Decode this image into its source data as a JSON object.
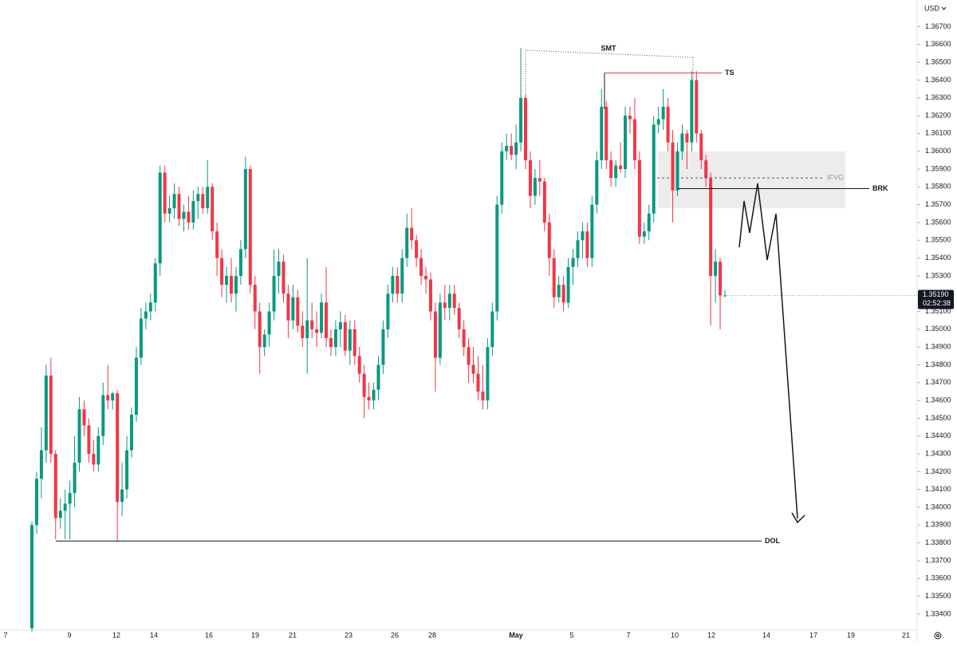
{
  "chart_data": {
    "type": "candlestick",
    "currency": "USD",
    "ylim": [
      1.3331,
      1.3685
    ],
    "yticks": [
      {
        "value": 1.334,
        "label": "1.33400"
      },
      {
        "value": 1.335,
        "label": "1.33500"
      },
      {
        "value": 1.336,
        "label": "1.33600"
      },
      {
        "value": 1.337,
        "label": "1.33700"
      },
      {
        "value": 1.338,
        "label": "1.33800"
      },
      {
        "value": 1.339,
        "label": "1.33900"
      },
      {
        "value": 1.34,
        "label": "1.34000"
      },
      {
        "value": 1.341,
        "label": "1.34100"
      },
      {
        "value": 1.342,
        "label": "1.34200"
      },
      {
        "value": 1.343,
        "label": "1.34300"
      },
      {
        "value": 1.344,
        "label": "1.34400"
      },
      {
        "value": 1.345,
        "label": "1.34500"
      },
      {
        "value": 1.346,
        "label": "1.34600"
      },
      {
        "value": 1.347,
        "label": "1.34700"
      },
      {
        "value": 1.348,
        "label": "1.34800"
      },
      {
        "value": 1.349,
        "label": "1.34900"
      },
      {
        "value": 1.35,
        "label": "1.35000"
      },
      {
        "value": 1.351,
        "label": "1.35100"
      },
      {
        "value": 1.353,
        "label": "1.35300"
      },
      {
        "value": 1.354,
        "label": "1.35400"
      },
      {
        "value": 1.355,
        "label": "1.35500"
      },
      {
        "value": 1.356,
        "label": "1.35600"
      },
      {
        "value": 1.357,
        "label": "1.35700"
      },
      {
        "value": 1.358,
        "label": "1.35800"
      },
      {
        "value": 1.359,
        "label": "1.35900"
      },
      {
        "value": 1.36,
        "label": "1.36000"
      },
      {
        "value": 1.361,
        "label": "1.36100"
      },
      {
        "value": 1.362,
        "label": "1.36200"
      },
      {
        "value": 1.363,
        "label": "1.36300"
      },
      {
        "value": 1.364,
        "label": "1.36400"
      },
      {
        "value": 1.365,
        "label": "1.36500"
      },
      {
        "value": 1.366,
        "label": "1.36600"
      },
      {
        "value": 1.367,
        "label": "1.36700"
      }
    ],
    "grid": false,
    "up_color": "#089981",
    "down_color": "#f23645",
    "x_labels": [
      "7",
      "9",
      "12",
      "14",
      "16",
      "19",
      "21",
      "23",
      "26",
      "28",
      "May",
      "5",
      "7",
      "10",
      "12",
      "14",
      "17",
      "19",
      "21"
    ],
    "last_price": {
      "value": 1.3519,
      "label": "1.35190"
    },
    "countdown": "02:52:38",
    "candles": [
      [
        1.3332,
        1.3392,
        1.333,
        1.339
      ],
      [
        1.339,
        1.342,
        1.3385,
        1.3416
      ],
      [
        1.3416,
        1.3445,
        1.3405,
        1.3432
      ],
      [
        1.3432,
        1.348,
        1.3425,
        1.3474
      ],
      [
        1.3474,
        1.3484,
        1.3425,
        1.343
      ],
      [
        1.343,
        1.3432,
        1.3382,
        1.3394
      ],
      [
        1.3394,
        1.3405,
        1.3388,
        1.3398
      ],
      [
        1.3398,
        1.341,
        1.3382,
        1.3402
      ],
      [
        1.3402,
        1.3415,
        1.3382,
        1.3408
      ],
      [
        1.3408,
        1.344,
        1.34,
        1.3425
      ],
      [
        1.3425,
        1.3462,
        1.342,
        1.3455
      ],
      [
        1.3455,
        1.346,
        1.344,
        1.3446
      ],
      [
        1.3446,
        1.345,
        1.3425,
        1.343
      ],
      [
        1.343,
        1.3438,
        1.342,
        1.3424
      ],
      [
        1.3424,
        1.3445,
        1.342,
        1.344
      ],
      [
        1.344,
        1.347,
        1.3435,
        1.3463
      ],
      [
        1.3463,
        1.348,
        1.3455,
        1.346
      ],
      [
        1.346,
        1.3465,
        1.3455,
        1.3464
      ],
      [
        1.3464,
        1.3466,
        1.3381,
        1.3403
      ],
      [
        1.3403,
        1.3425,
        1.3395,
        1.341
      ],
      [
        1.341,
        1.344,
        1.3405,
        1.3432
      ],
      [
        1.3432,
        1.3456,
        1.3428,
        1.3452
      ],
      [
        1.3452,
        1.349,
        1.3448,
        1.3484
      ],
      [
        1.3484,
        1.3512,
        1.348,
        1.3506
      ],
      [
        1.3506,
        1.3515,
        1.35,
        1.351
      ],
      [
        1.351,
        1.352,
        1.3505,
        1.3515
      ],
      [
        1.3515,
        1.354,
        1.351,
        1.3537
      ],
      [
        1.3537,
        1.3592,
        1.353,
        1.3588
      ],
      [
        1.3588,
        1.3592,
        1.356,
        1.3565
      ],
      [
        1.3565,
        1.3575,
        1.356,
        1.3568
      ],
      [
        1.3568,
        1.3582,
        1.3562,
        1.3576
      ],
      [
        1.3576,
        1.358,
        1.3558,
        1.3562
      ],
      [
        1.3562,
        1.357,
        1.3555,
        1.3566
      ],
      [
        1.3566,
        1.3575,
        1.3556,
        1.356
      ],
      [
        1.356,
        1.3578,
        1.3556,
        1.3572
      ],
      [
        1.3572,
        1.358,
        1.3562,
        1.3576
      ],
      [
        1.3576,
        1.358,
        1.3565,
        1.3568
      ],
      [
        1.3568,
        1.3595,
        1.3565,
        1.358
      ],
      [
        1.358,
        1.3582,
        1.355,
        1.3555
      ],
      [
        1.3555,
        1.356,
        1.353,
        1.354
      ],
      [
        1.354,
        1.3545,
        1.3518,
        1.3525
      ],
      [
        1.3525,
        1.3535,
        1.3515,
        1.353
      ],
      [
        1.353,
        1.354,
        1.3515,
        1.352
      ],
      [
        1.352,
        1.3535,
        1.351,
        1.353
      ],
      [
        1.353,
        1.355,
        1.3525,
        1.3545
      ],
      [
        1.3545,
        1.3597,
        1.354,
        1.359
      ],
      [
        1.359,
        1.3592,
        1.352,
        1.3525
      ],
      [
        1.3525,
        1.353,
        1.35,
        1.351
      ],
      [
        1.351,
        1.3515,
        1.3475,
        1.349
      ],
      [
        1.349,
        1.35,
        1.3485,
        1.3497
      ],
      [
        1.3497,
        1.3515,
        1.349,
        1.351
      ],
      [
        1.351,
        1.3545,
        1.3505,
        1.353
      ],
      [
        1.353,
        1.3545,
        1.352,
        1.3538
      ],
      [
        1.3538,
        1.3542,
        1.3515,
        1.352
      ],
      [
        1.352,
        1.3525,
        1.3495,
        1.3505
      ],
      [
        1.3505,
        1.3525,
        1.35,
        1.3518
      ],
      [
        1.3518,
        1.3522,
        1.3498,
        1.3502
      ],
      [
        1.3502,
        1.351,
        1.349,
        1.3495
      ],
      [
        1.3495,
        1.354,
        1.3475,
        1.3505
      ],
      [
        1.3505,
        1.3515,
        1.3495,
        1.35
      ],
      [
        1.35,
        1.351,
        1.349,
        1.3498
      ],
      [
        1.3498,
        1.352,
        1.3495,
        1.3515
      ],
      [
        1.3515,
        1.3535,
        1.349,
        1.3495
      ],
      [
        1.3495,
        1.35,
        1.3485,
        1.349
      ],
      [
        1.349,
        1.3505,
        1.3485,
        1.35
      ],
      [
        1.35,
        1.351,
        1.349,
        1.3504
      ],
      [
        1.3504,
        1.3508,
        1.3485,
        1.3488
      ],
      [
        1.3488,
        1.3505,
        1.348,
        1.35
      ],
      [
        1.35,
        1.3505,
        1.348,
        1.3485
      ],
      [
        1.3485,
        1.349,
        1.347,
        1.3475
      ],
      [
        1.3475,
        1.348,
        1.345,
        1.3462
      ],
      [
        1.3462,
        1.347,
        1.3455,
        1.346
      ],
      [
        1.346,
        1.347,
        1.3455,
        1.3466
      ],
      [
        1.3466,
        1.3485,
        1.346,
        1.348
      ],
      [
        1.348,
        1.3505,
        1.3475,
        1.35
      ],
      [
        1.35,
        1.3525,
        1.3495,
        1.352
      ],
      [
        1.352,
        1.3535,
        1.3515,
        1.353
      ],
      [
        1.353,
        1.3535,
        1.3515,
        1.352
      ],
      [
        1.352,
        1.3545,
        1.3515,
        1.354
      ],
      [
        1.354,
        1.3565,
        1.3535,
        1.3557
      ],
      [
        1.3557,
        1.3568,
        1.3545,
        1.355
      ],
      [
        1.355,
        1.3553,
        1.3535,
        1.354
      ],
      [
        1.354,
        1.3545,
        1.3525,
        1.353
      ],
      [
        1.353,
        1.3535,
        1.352,
        1.3528
      ],
      [
        1.3528,
        1.3532,
        1.3505,
        1.351
      ],
      [
        1.351,
        1.3515,
        1.3465,
        1.3484
      ],
      [
        1.3484,
        1.352,
        1.348,
        1.3515
      ],
      [
        1.3515,
        1.3525,
        1.3505,
        1.3512
      ],
      [
        1.3512,
        1.3525,
        1.3505,
        1.352
      ],
      [
        1.352,
        1.3525,
        1.3508,
        1.3512
      ],
      [
        1.3512,
        1.3515,
        1.3495,
        1.35
      ],
      [
        1.35,
        1.3505,
        1.3485,
        1.349
      ],
      [
        1.349,
        1.3495,
        1.347,
        1.348
      ],
      [
        1.348,
        1.349,
        1.347,
        1.3475
      ],
      [
        1.3475,
        1.3485,
        1.346,
        1.3465
      ],
      [
        1.3465,
        1.348,
        1.3455,
        1.346
      ],
      [
        1.346,
        1.3495,
        1.3455,
        1.349
      ],
      [
        1.349,
        1.3515,
        1.3485,
        1.351
      ],
      [
        1.351,
        1.3575,
        1.3505,
        1.357
      ],
      [
        1.357,
        1.3605,
        1.3565,
        1.36
      ],
      [
        1.36,
        1.361,
        1.3595,
        1.3603
      ],
      [
        1.3603,
        1.361,
        1.3595,
        1.3598
      ],
      [
        1.3598,
        1.3615,
        1.359,
        1.3605
      ],
      [
        1.3605,
        1.3658,
        1.36,
        1.363
      ],
      [
        1.363,
        1.3632,
        1.359,
        1.3595
      ],
      [
        1.3595,
        1.36,
        1.3568,
        1.3575
      ],
      [
        1.3575,
        1.359,
        1.357,
        1.3585
      ],
      [
        1.3585,
        1.3595,
        1.3575,
        1.3583
      ],
      [
        1.3583,
        1.3585,
        1.3555,
        1.356
      ],
      [
        1.356,
        1.3565,
        1.353,
        1.354
      ],
      [
        1.354,
        1.3545,
        1.3512,
        1.3518
      ],
      [
        1.3518,
        1.353,
        1.3515,
        1.3525
      ],
      [
        1.3525,
        1.353,
        1.351,
        1.3515
      ],
      [
        1.3515,
        1.354,
        1.3512,
        1.3535
      ],
      [
        1.3535,
        1.3545,
        1.3525,
        1.354
      ],
      [
        1.354,
        1.3555,
        1.3535,
        1.355
      ],
      [
        1.355,
        1.356,
        1.354,
        1.3555
      ],
      [
        1.3555,
        1.356,
        1.3535,
        1.354
      ],
      [
        1.354,
        1.3575,
        1.3535,
        1.357
      ],
      [
        1.357,
        1.36,
        1.3565,
        1.3595
      ],
      [
        1.3595,
        1.3635,
        1.359,
        1.3625
      ],
      [
        1.3625,
        1.3628,
        1.359,
        1.3595
      ],
      [
        1.3595,
        1.36,
        1.358,
        1.3585
      ],
      [
        1.3585,
        1.3595,
        1.358,
        1.3592
      ],
      [
        1.3592,
        1.3605,
        1.3588,
        1.359
      ],
      [
        1.359,
        1.3625,
        1.3585,
        1.362
      ],
      [
        1.362,
        1.3625,
        1.361,
        1.3618
      ],
      [
        1.3618,
        1.363,
        1.359,
        1.3595
      ],
      [
        1.3595,
        1.36,
        1.3548,
        1.3552
      ],
      [
        1.3552,
        1.356,
        1.3548,
        1.3555
      ],
      [
        1.3555,
        1.357,
        1.355,
        1.3565
      ],
      [
        1.3565,
        1.362,
        1.356,
        1.3615
      ],
      [
        1.3615,
        1.3625,
        1.361,
        1.3618
      ],
      [
        1.3618,
        1.3635,
        1.3612,
        1.3625
      ],
      [
        1.3625,
        1.363,
        1.36,
        1.3605
      ],
      [
        1.3605,
        1.3612,
        1.356,
        1.3578
      ],
      [
        1.3578,
        1.3605,
        1.3575,
        1.36
      ],
      [
        1.36,
        1.3615,
        1.3595,
        1.361
      ],
      [
        1.361,
        1.3612,
        1.359,
        1.3605
      ],
      [
        1.3605,
        1.3645,
        1.36,
        1.364
      ],
      [
        1.364,
        1.3645,
        1.3605,
        1.361
      ],
      [
        1.361,
        1.3612,
        1.359,
        1.3595
      ],
      [
        1.3595,
        1.3598,
        1.358,
        1.3585
      ],
      [
        1.3585,
        1.3588,
        1.3502,
        1.353
      ],
      [
        1.353,
        1.3545,
        1.3515,
        1.3538
      ],
      [
        1.3538,
        1.354,
        1.35,
        1.3519
      ],
      [
        1.3519,
        1.3522,
        1.3518,
        1.3519
      ]
    ],
    "annotations": {
      "smt": {
        "text": "SMT"
      },
      "ts": {
        "text": "TS",
        "value": 1.3644,
        "color": "#f23645"
      },
      "brk": {
        "text": "BRK",
        "value": 1.3579
      },
      "dol": {
        "text": "DOL",
        "value": 1.3381
      },
      "ifvg": {
        "text": "IFVG",
        "low": 1.3568,
        "high": 1.36,
        "mid": 1.3585
      }
    }
  }
}
